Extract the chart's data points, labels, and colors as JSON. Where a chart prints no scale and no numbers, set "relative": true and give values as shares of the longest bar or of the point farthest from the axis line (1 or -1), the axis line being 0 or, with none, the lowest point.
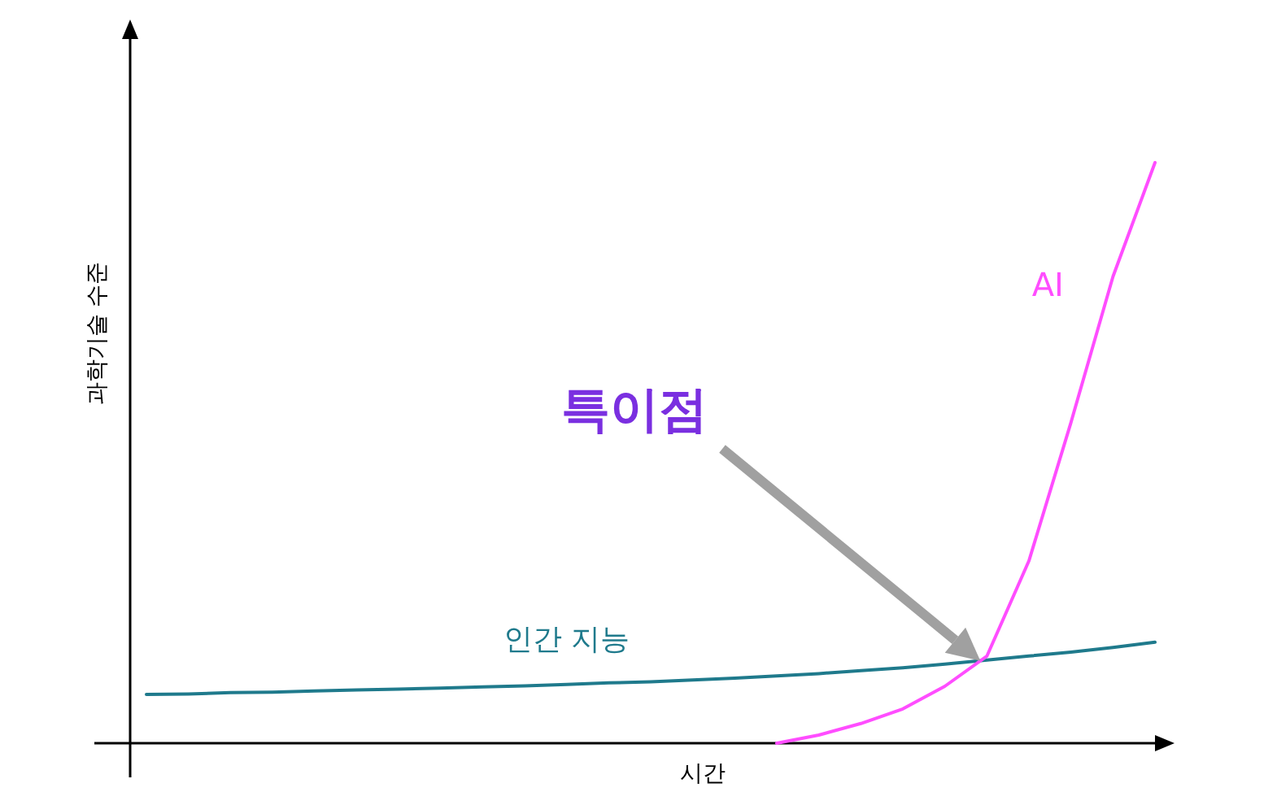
{
  "chart_data": {
    "type": "line",
    "relative": true,
    "xlabel": "시간",
    "ylabel": "과학기술 수준",
    "categories": [
      null,
      null,
      null,
      null,
      null,
      null,
      null,
      null,
      null,
      null,
      null,
      null,
      null,
      null,
      null,
      null,
      null,
      null,
      null,
      null,
      null,
      null,
      null,
      null,
      null
    ],
    "series": [
      {
        "name": "인간 지능",
        "color": "#1f7a8c",
        "values": [
          0.084,
          0.085,
          0.087,
          0.088,
          0.09,
          0.092,
          0.093,
          0.095,
          0.097,
          0.099,
          0.101,
          0.104,
          0.106,
          0.109,
          0.112,
          0.116,
          0.12,
          0.125,
          0.13,
          0.136,
          0.143,
          0.15,
          0.157,
          0.165,
          0.174
        ]
      },
      {
        "name": "AI",
        "color": "#ff4dff",
        "values": [
          null,
          null,
          null,
          null,
          null,
          null,
          null,
          null,
          null,
          null,
          null,
          null,
          null,
          null,
          null,
          0.0,
          0.014,
          0.034,
          0.059,
          0.098,
          0.15,
          0.314,
          0.552,
          0.804,
          1.0
        ]
      }
    ],
    "annotations": [
      "특이점"
    ],
    "marker": "none"
  }
}
